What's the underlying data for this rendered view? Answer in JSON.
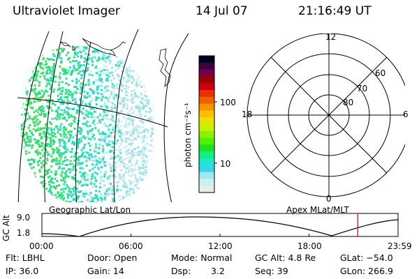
{
  "header": {
    "instrument": "Ultraviolet Imager",
    "date": "14 Jul 07",
    "time": "21:16:49 UT"
  },
  "colorbar": {
    "unit_label": "photon cm⁻²s⁻¹",
    "ticks": [
      "100",
      "10"
    ],
    "colors": [
      "#000020",
      "#3a0040",
      "#700050",
      "#a00000",
      "#cc0010",
      "#e83000",
      "#f06000",
      "#f89000",
      "#f8c000",
      "#f0e000",
      "#c8f000",
      "#90f000",
      "#50f000",
      "#20e020",
      "#10f080",
      "#20e8d0",
      "#30d8e8",
      "#a0e8ee",
      "#d0eef0",
      "#e4eef0"
    ]
  },
  "polar_plot": {
    "hour_labels": {
      "top": "12",
      "left": "18",
      "right": "6",
      "bottom": "0"
    },
    "lat_labels": [
      "60",
      "70",
      "80"
    ]
  },
  "altitude_panel": {
    "left_title": "Geographic Lat/Lon",
    "right_title": "Apex MLat/MLT",
    "axis_label": "GC Alt",
    "y_ticks": [
      "9.0",
      "1.8"
    ],
    "x_ticks": [
      "00:00",
      "06:00",
      "12:00",
      "18:00",
      "23:59"
    ],
    "current_time_marker_hours": 21.28,
    "marker_color": "#dd0000"
  },
  "info": {
    "row1": {
      "filter": "Flt: LBHL",
      "door": "Door: Open",
      "mode": "Mode: Normal",
      "gc_alt": "GC Alt: 4.8 Re",
      "glat": "GLat: −54.0"
    },
    "row2": {
      "ip": "IP: 36.0",
      "gain": "Gain: 14",
      "dsp_label": "Dsp:",
      "dsp_value": "3.2",
      "seq": "Seq: 39",
      "glon": "GLon: 266.9"
    }
  }
}
